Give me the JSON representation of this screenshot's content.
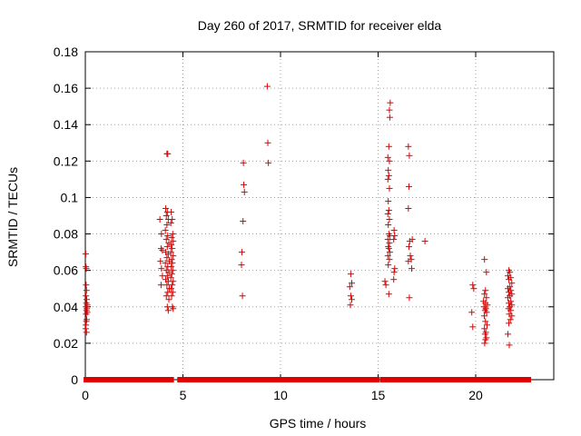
{
  "chart_data": {
    "type": "scatter",
    "title": "Day 260 of 2017, SRMTID for receiver elda",
    "xlabel": "GPS time / hours",
    "ylabel": "SRMTID / TECUs",
    "xlim": [
      0,
      24
    ],
    "ylim": [
      0,
      0.18
    ],
    "x_ticks": [
      0,
      5,
      10,
      15,
      20
    ],
    "x_tick_labels": [
      "0",
      "5",
      "10",
      "15",
      "20"
    ],
    "y_ticks": [
      0,
      0.02,
      0.04,
      0.06,
      0.08,
      0.1,
      0.12,
      0.14,
      0.16,
      0.18
    ],
    "y_tick_labels": [
      "0",
      "0.02",
      "0.04",
      "0.06",
      "0.08",
      "0.1",
      "0.12",
      "0.14",
      "0.16",
      "0.18"
    ],
    "grid": true,
    "marker": "+",
    "color": "#e00000",
    "zero_value_segments": [
      [
        0.05,
        3.9
      ],
      [
        4.15,
        4.4
      ],
      [
        4.85,
        14.95
      ],
      [
        15.25,
        15.45
      ],
      [
        15.65,
        20.15
      ],
      [
        20.35,
        20.65
      ],
      [
        20.75,
        21.45
      ],
      [
        21.55,
        21.65
      ],
      [
        21.85,
        22.7
      ]
    ],
    "series": [
      {
        "name": "SRMTID",
        "points": [
          [
            0.02,
            0.069
          ],
          [
            0.03,
            0.062
          ],
          [
            0.05,
            0.061
          ],
          [
            0.04,
            0.052
          ],
          [
            0.06,
            0.049
          ],
          [
            0.03,
            0.046
          ],
          [
            0.07,
            0.044
          ],
          [
            0.05,
            0.042
          ],
          [
            0.1,
            0.041
          ],
          [
            0.03,
            0.04
          ],
          [
            0.08,
            0.039
          ],
          [
            0.06,
            0.038
          ],
          [
            0.1,
            0.037
          ],
          [
            0.04,
            0.036
          ],
          [
            0.07,
            0.033
          ],
          [
            0.05,
            0.032
          ],
          [
            0.03,
            0.03
          ],
          [
            0.02,
            0.028
          ],
          [
            0.06,
            0.026
          ],
          [
            3.82,
            0.088
          ],
          [
            3.9,
            0.08
          ],
          [
            3.88,
            0.072
          ],
          [
            3.95,
            0.071
          ],
          [
            3.85,
            0.065
          ],
          [
            3.9,
            0.061
          ],
          [
            3.95,
            0.057
          ],
          [
            3.88,
            0.052
          ],
          [
            4.18,
            0.124
          ],
          [
            4.22,
            0.124
          ],
          [
            4.12,
            0.094
          ],
          [
            4.2,
            0.092
          ],
          [
            4.15,
            0.09
          ],
          [
            4.25,
            0.088
          ],
          [
            4.18,
            0.085
          ],
          [
            4.1,
            0.082
          ],
          [
            4.22,
            0.079
          ],
          [
            4.15,
            0.077
          ],
          [
            4.28,
            0.075
          ],
          [
            4.2,
            0.073
          ],
          [
            4.12,
            0.07
          ],
          [
            4.25,
            0.069
          ],
          [
            4.18,
            0.067
          ],
          [
            4.3,
            0.065
          ],
          [
            4.1,
            0.064
          ],
          [
            4.22,
            0.062
          ],
          [
            4.15,
            0.06
          ],
          [
            4.28,
            0.059
          ],
          [
            4.2,
            0.057
          ],
          [
            4.12,
            0.055
          ],
          [
            4.25,
            0.054
          ],
          [
            4.18,
            0.052
          ],
          [
            4.3,
            0.05
          ],
          [
            4.22,
            0.048
          ],
          [
            4.15,
            0.046
          ],
          [
            4.28,
            0.044
          ],
          [
            4.2,
            0.04
          ],
          [
            4.25,
            0.038
          ],
          [
            4.4,
            0.092
          ],
          [
            4.45,
            0.088
          ],
          [
            4.38,
            0.086
          ],
          [
            4.48,
            0.08
          ],
          [
            4.42,
            0.078
          ],
          [
            4.5,
            0.076
          ],
          [
            4.4,
            0.074
          ],
          [
            4.45,
            0.072
          ],
          [
            4.38,
            0.07
          ],
          [
            4.5,
            0.068
          ],
          [
            4.42,
            0.066
          ],
          [
            4.46,
            0.064
          ],
          [
            4.4,
            0.062
          ],
          [
            4.48,
            0.06
          ],
          [
            4.43,
            0.058
          ],
          [
            4.38,
            0.056
          ],
          [
            4.5,
            0.054
          ],
          [
            4.45,
            0.052
          ],
          [
            4.4,
            0.05
          ],
          [
            4.48,
            0.048
          ],
          [
            4.42,
            0.046
          ],
          [
            4.46,
            0.04
          ],
          [
            4.5,
            0.039
          ],
          [
            8.05,
            0.046
          ],
          [
            8.0,
            0.063
          ],
          [
            8.02,
            0.07
          ],
          [
            8.08,
            0.087
          ],
          [
            8.15,
            0.103
          ],
          [
            8.12,
            0.107
          ],
          [
            8.1,
            0.119
          ],
          [
            9.32,
            0.161
          ],
          [
            9.35,
            0.13
          ],
          [
            9.38,
            0.119
          ],
          [
            13.6,
            0.058
          ],
          [
            13.65,
            0.053
          ],
          [
            13.55,
            0.051
          ],
          [
            13.6,
            0.046
          ],
          [
            13.65,
            0.044
          ],
          [
            13.58,
            0.041
          ],
          [
            15.35,
            0.054
          ],
          [
            15.4,
            0.052
          ],
          [
            15.62,
            0.152
          ],
          [
            15.58,
            0.148
          ],
          [
            15.6,
            0.144
          ],
          [
            15.55,
            0.128
          ],
          [
            15.5,
            0.122
          ],
          [
            15.58,
            0.12
          ],
          [
            15.52,
            0.115
          ],
          [
            15.55,
            0.112
          ],
          [
            15.5,
            0.11
          ],
          [
            15.58,
            0.105
          ],
          [
            15.52,
            0.098
          ],
          [
            15.55,
            0.093
          ],
          [
            15.5,
            0.091
          ],
          [
            15.58,
            0.088
          ],
          [
            15.52,
            0.085
          ],
          [
            15.55,
            0.08
          ],
          [
            15.6,
            0.079
          ],
          [
            15.5,
            0.077
          ],
          [
            15.58,
            0.075
          ],
          [
            15.52,
            0.073
          ],
          [
            15.55,
            0.072
          ],
          [
            15.6,
            0.07
          ],
          [
            15.5,
            0.068
          ],
          [
            15.58,
            0.066
          ],
          [
            15.52,
            0.063
          ],
          [
            15.55,
            0.047
          ],
          [
            15.82,
            0.082
          ],
          [
            15.85,
            0.079
          ],
          [
            15.8,
            0.077
          ],
          [
            15.85,
            0.061
          ],
          [
            15.82,
            0.059
          ],
          [
            15.8,
            0.055
          ],
          [
            16.55,
            0.128
          ],
          [
            16.6,
            0.123
          ],
          [
            16.58,
            0.106
          ],
          [
            16.55,
            0.094
          ],
          [
            16.62,
            0.076
          ],
          [
            16.75,
            0.077
          ],
          [
            16.58,
            0.073
          ],
          [
            16.65,
            0.068
          ],
          [
            16.7,
            0.066
          ],
          [
            16.55,
            0.065
          ],
          [
            16.72,
            0.061
          ],
          [
            16.6,
            0.045
          ],
          [
            17.4,
            0.076
          ],
          [
            19.85,
            0.052
          ],
          [
            19.9,
            0.05
          ],
          [
            19.8,
            0.037
          ],
          [
            19.85,
            0.029
          ],
          [
            20.45,
            0.066
          ],
          [
            20.55,
            0.059
          ],
          [
            20.5,
            0.049
          ],
          [
            20.45,
            0.047
          ],
          [
            20.55,
            0.045
          ],
          [
            20.4,
            0.043
          ],
          [
            20.5,
            0.042
          ],
          [
            20.6,
            0.041
          ],
          [
            20.42,
            0.04
          ],
          [
            20.52,
            0.039
          ],
          [
            20.48,
            0.038
          ],
          [
            20.56,
            0.037
          ],
          [
            20.44,
            0.035
          ],
          [
            20.5,
            0.032
          ],
          [
            20.58,
            0.03
          ],
          [
            20.45,
            0.028
          ],
          [
            20.52,
            0.026
          ],
          [
            20.48,
            0.025
          ],
          [
            20.55,
            0.023
          ],
          [
            20.5,
            0.022
          ],
          [
            20.46,
            0.02
          ],
          [
            21.7,
            0.06
          ],
          [
            21.75,
            0.059
          ],
          [
            21.65,
            0.057
          ],
          [
            21.8,
            0.056
          ],
          [
            21.7,
            0.055
          ],
          [
            21.85,
            0.053
          ],
          [
            21.75,
            0.051
          ],
          [
            21.65,
            0.05
          ],
          [
            21.8,
            0.049
          ],
          [
            21.7,
            0.048
          ],
          [
            21.85,
            0.047
          ],
          [
            21.75,
            0.046
          ],
          [
            21.65,
            0.045
          ],
          [
            21.8,
            0.043
          ],
          [
            21.7,
            0.042
          ],
          [
            21.85,
            0.041
          ],
          [
            21.75,
            0.04
          ],
          [
            21.68,
            0.039
          ],
          [
            21.8,
            0.038
          ],
          [
            21.72,
            0.036
          ],
          [
            21.85,
            0.035
          ],
          [
            21.78,
            0.033
          ],
          [
            21.7,
            0.031
          ],
          [
            21.65,
            0.025
          ],
          [
            21.72,
            0.019
          ]
        ]
      }
    ]
  }
}
